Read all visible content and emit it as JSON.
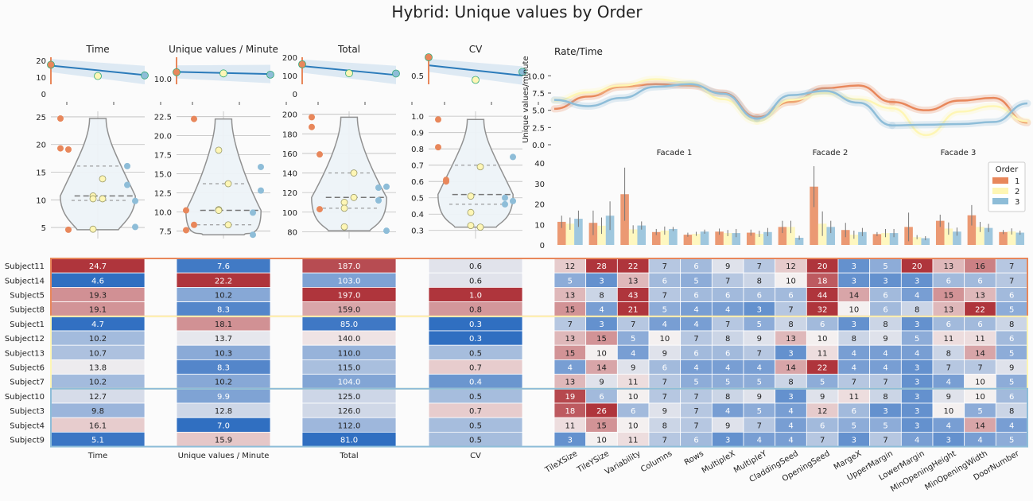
{
  "figure_title": "Hybrid: Unique values by Order",
  "colors": {
    "order_1": "#e8875b",
    "order_2": "#fef6b5",
    "order_3": "#8ebdd8",
    "trend_line": "#2b7bba",
    "violin_fill": "#eef4f8",
    "violin_stroke": "#8c8c8c"
  },
  "chart_data": [
    {
      "type": "line",
      "id": "trend-time",
      "title": "Time",
      "x": [
        1,
        2,
        3
      ],
      "y": [
        17.5,
        10.7,
        11.1
      ],
      "fit": [
        17,
        11.3
      ],
      "yticks": [
        0,
        10,
        20
      ],
      "ylim": [
        0,
        22
      ]
    },
    {
      "type": "line",
      "id": "trend-upm",
      "title": "Unique values / Minute",
      "x": [
        1,
        2,
        3
      ],
      "y": [
        12.1,
        11.7,
        11.3
      ],
      "fit": [
        12.2,
        11.5
      ],
      "yticks": [
        10
      ],
      "ylim": [
        5,
        17
      ]
    },
    {
      "type": "line",
      "id": "trend-total",
      "title": "Total",
      "x": [
        1,
        2,
        3
      ],
      "y": [
        161.5,
        112.3,
        111.0
      ],
      "fit": [
        152,
        103
      ],
      "yticks": [
        0,
        100,
        200
      ],
      "ylim": [
        0,
        200
      ]
    },
    {
      "type": "line",
      "id": "trend-cv",
      "title": "CV",
      "x": [
        1,
        2,
        3
      ],
      "y": [
        0.75,
        0.44,
        0.55
      ],
      "fit": [
        0.64,
        0.5
      ],
      "yticks": [
        0.5
      ],
      "ylim": [
        0.25,
        0.75
      ]
    },
    {
      "type": "scatter",
      "id": "violin-time",
      "title": "",
      "yticks": [
        5,
        10,
        15,
        20,
        25
      ],
      "ylim": [
        3,
        26
      ],
      "violin": {
        "min": 4.6,
        "max": 24.7,
        "q1": 9.9,
        "median": 10.7,
        "q3": 16.1
      },
      "series": [
        {
          "name": "1",
          "values": [
            24.7,
            4.6,
            19.3,
            19.1
          ]
        },
        {
          "name": "2",
          "values": [
            4.7,
            10.2,
            10.7,
            13.8,
            10.2
          ]
        },
        {
          "name": "3",
          "values": [
            12.7,
            9.8,
            16.1,
            5.1
          ]
        }
      ]
    },
    {
      "type": "scatter",
      "id": "violin-upm",
      "title": "",
      "yticks": [
        7.5,
        10.0,
        12.5,
        15.0,
        17.5,
        20.0,
        22.5
      ],
      "ylim": [
        6.5,
        23.2
      ],
      "violin": {
        "min": 7.0,
        "max": 22.2,
        "q1": 8.3,
        "median": 10.2,
        "q3": 13.7
      },
      "series": [
        {
          "name": "1",
          "values": [
            7.6,
            22.2,
            10.2,
            8.3
          ]
        },
        {
          "name": "2",
          "values": [
            18.1,
            13.7,
            10.3,
            8.3,
            10.2
          ]
        },
        {
          "name": "3",
          "values": [
            9.9,
            12.8,
            7.0,
            15.9
          ]
        }
      ]
    },
    {
      "type": "scatter",
      "id": "violin-total",
      "title": "",
      "yticks": [
        80,
        100,
        120,
        140,
        160,
        180,
        200
      ],
      "ylim": [
        73,
        203
      ],
      "violin": {
        "min": 81,
        "max": 197,
        "q1": 104,
        "median": 115,
        "q3": 140
      },
      "series": [
        {
          "name": "1",
          "values": [
            187.0,
            103.0,
            197.0,
            159.0
          ]
        },
        {
          "name": "2",
          "values": [
            85.0,
            140.0,
            110.0,
            115.0,
            104.0
          ]
        },
        {
          "name": "3",
          "values": [
            125.0,
            126.0,
            112.0,
            81.0
          ]
        }
      ]
    },
    {
      "type": "scatter",
      "id": "violin-cv",
      "title": "",
      "yticks": [
        0.3,
        0.4,
        0.5,
        0.6,
        0.7,
        0.8,
        0.9,
        1.0
      ],
      "ylim": [
        0.25,
        1.03
      ],
      "violin": {
        "min": 0.32,
        "max": 0.98,
        "q1": 0.46,
        "median": 0.52,
        "q3": 0.7
      },
      "series": [
        {
          "name": "1",
          "values": [
            0.98,
            0.61,
            0.81,
            0.6
          ]
        },
        {
          "name": "2",
          "values": [
            0.33,
            0.32,
            0.41,
            0.69,
            0.51
          ]
        },
        {
          "name": "3",
          "values": [
            0.5,
            0.75,
            0.46,
            0.48
          ]
        }
      ]
    },
    {
      "type": "line",
      "id": "rate-time",
      "title": "Rate/Time",
      "ylabel": "Unique values/minute",
      "yticks": [
        0.0,
        2.5,
        5.0,
        7.5,
        10.0
      ],
      "ylim": [
        0,
        12
      ],
      "x": [
        0,
        1,
        2,
        3,
        4,
        5,
        6,
        7,
        8,
        9,
        10,
        11,
        12,
        13,
        14
      ],
      "series": [
        {
          "name": "1",
          "values": [
            5.2,
            7.0,
            8.4,
            8.8,
            8.6,
            7.5,
            4.0,
            6.2,
            8.2,
            8.6,
            6.2,
            5.0,
            6.4,
            6.8,
            3.2
          ]
        },
        {
          "name": "2",
          "values": [
            6.4,
            7.6,
            8.6,
            9.5,
            9.0,
            6.6,
            3.4,
            6.5,
            7.5,
            6.6,
            5.3,
            1.4,
            4.8,
            5.6,
            3.4
          ]
        },
        {
          "name": "3",
          "values": [
            6.5,
            5.6,
            6.8,
            8.4,
            8.8,
            7.4,
            3.8,
            7.2,
            7.8,
            6.1,
            2.8,
            2.9,
            3.0,
            3.3,
            6.0
          ]
        }
      ]
    },
    {
      "type": "bar",
      "id": "facade-bars",
      "facets": [
        "Facade 1",
        "Facade 2",
        "Facade 3"
      ],
      "yticks": [
        0,
        10,
        20,
        30,
        40
      ],
      "ylim": [
        0,
        42
      ],
      "categories": [
        "TileXSize",
        "TileYSize",
        "Variability",
        "Columns",
        "Rows",
        "MultipleX",
        "MultipleY",
        "CladdingSeed",
        "OpeningSeed",
        "MargeX",
        "UpperMargin",
        "LowerMargin",
        "MinOpeningHeight",
        "MinOpeningWidth",
        "DoorNumber"
      ],
      "legend": {
        "title": "Order",
        "position": "upper-right"
      },
      "series": [
        {
          "name": "1",
          "values": [
            11.3,
            10.8,
            24.8,
            6.3,
            5.0,
            6.5,
            6.0,
            8.8,
            28.5,
            7.3,
            5.3,
            8.8,
            11.8,
            14.5,
            6.3
          ],
          "err": [
            3,
            6,
            13,
            1.5,
            1,
            1.5,
            1.5,
            3,
            10,
            3.5,
            1,
            7,
            3,
            5,
            1
          ]
        },
        {
          "name": "2",
          "values": [
            10.4,
            9.4,
            7.6,
            7.0,
            5.4,
            5.8,
            5.4,
            8.8,
            10.4,
            5.0,
            5.8,
            3.8,
            8.0,
            8.8,
            6.6
          ],
          "err": [
            3,
            4,
            2,
            2,
            1,
            1.5,
            1.5,
            3,
            6,
            2,
            2,
            1,
            3,
            2.5,
            1.5
          ]
        },
        {
          "name": "3",
          "values": [
            12.8,
            14.3,
            9.5,
            7.8,
            6.5,
            5.8,
            6.3,
            3.5,
            8.8,
            6.3,
            5.8,
            3.3,
            6.5,
            8.3,
            6.0
          ],
          "err": [
            4,
            7,
            2,
            1,
            1,
            2,
            2,
            1,
            3,
            2,
            2,
            1,
            2,
            2,
            1
          ]
        }
      ]
    },
    {
      "type": "heatmap",
      "id": "heatmap-summary",
      "rows": [
        "Subject11",
        "Subject14",
        "Subject5",
        "Subject8",
        "Subject1",
        "Subject12",
        "Subject13",
        "Subject6",
        "Subject7",
        "Subject10",
        "Subject3",
        "Subject4",
        "Subject9"
      ],
      "groups": [
        {
          "order": "1",
          "rows": 4
        },
        {
          "order": "2",
          "rows": 5
        },
        {
          "order": "3",
          "rows": 4
        }
      ],
      "columns": [
        {
          "label": "Time",
          "values": [
            "24.7",
            "4.6",
            "19.3",
            "19.1",
            "4.7",
            "10.2",
            "10.7",
            "13.8",
            "10.2",
            "12.7",
            "9.8",
            "16.1",
            "5.1"
          ]
        },
        {
          "label": "Unique values / Minute",
          "values": [
            "7.6",
            "22.2",
            "10.2",
            "8.3",
            "18.1",
            "13.7",
            "10.3",
            "8.3",
            "10.2",
            "9.9",
            "12.8",
            "7.0",
            "15.9"
          ]
        },
        {
          "label": "Total",
          "values": [
            "187.0",
            "103.0",
            "197.0",
            "159.0",
            "85.0",
            "140.0",
            "110.0",
            "115.0",
            "104.0",
            "125.0",
            "126.0",
            "112.0",
            "81.0"
          ]
        },
        {
          "label": "CV",
          "values": [
            "0.6",
            "0.6",
            "1.0",
            "0.8",
            "0.3",
            "0.3",
            "0.5",
            "0.7",
            "0.4",
            "0.5",
            "0.7",
            "0.5",
            "0.5"
          ]
        }
      ]
    },
    {
      "type": "heatmap",
      "id": "heatmap-params",
      "columns": [
        "TileXSize",
        "TileYSize",
        "Variability",
        "Columns",
        "Rows",
        "MultipleX",
        "MultipleY",
        "CladdingSeed",
        "OpeningSeed",
        "MargeX",
        "UpperMargin",
        "LowerMargin",
        "MinOpeningHeight",
        "MinOpeningWidth",
        "DoorNumber"
      ],
      "values": [
        [
          12,
          28,
          22,
          7,
          6,
          9,
          7,
          12,
          20,
          3,
          5,
          20,
          13,
          16,
          7
        ],
        [
          5,
          3,
          13,
          6,
          5,
          7,
          8,
          10,
          18,
          3,
          3,
          3,
          6,
          6,
          7
        ],
        [
          13,
          8,
          43,
          7,
          6,
          6,
          6,
          6,
          44,
          14,
          6,
          4,
          15,
          13,
          6
        ],
        [
          15,
          4,
          21,
          5,
          4,
          4,
          3,
          7,
          32,
          10,
          6,
          8,
          13,
          22,
          5
        ],
        [
          7,
          3,
          7,
          4,
          4,
          7,
          5,
          8,
          6,
          3,
          8,
          3,
          6,
          6,
          8
        ],
        [
          13,
          15,
          5,
          10,
          7,
          8,
          9,
          13,
          10,
          8,
          9,
          5,
          11,
          11,
          6
        ],
        [
          15,
          10,
          4,
          9,
          6,
          6,
          7,
          3,
          11,
          4,
          4,
          4,
          8,
          14,
          5
        ],
        [
          4,
          14,
          9,
          6,
          4,
          4,
          4,
          14,
          22,
          4,
          4,
          3,
          7,
          7,
          9
        ],
        [
          13,
          9,
          11,
          7,
          5,
          5,
          5,
          8,
          5,
          7,
          7,
          3,
          4,
          10,
          5
        ],
        [
          19,
          6,
          10,
          7,
          7,
          8,
          9,
          3,
          9,
          11,
          8,
          3,
          9,
          10,
          6
        ],
        [
          18,
          26,
          6,
          9,
          7,
          4,
          5,
          4,
          12,
          6,
          3,
          3,
          10,
          5,
          8
        ],
        [
          11,
          15,
          10,
          8,
          7,
          9,
          7,
          4,
          6,
          5,
          5,
          3,
          4,
          14,
          4
        ],
        [
          3,
          10,
          11,
          7,
          6,
          3,
          4,
          4,
          7,
          3,
          7,
          4,
          3,
          4,
          5
        ]
      ]
    }
  ]
}
